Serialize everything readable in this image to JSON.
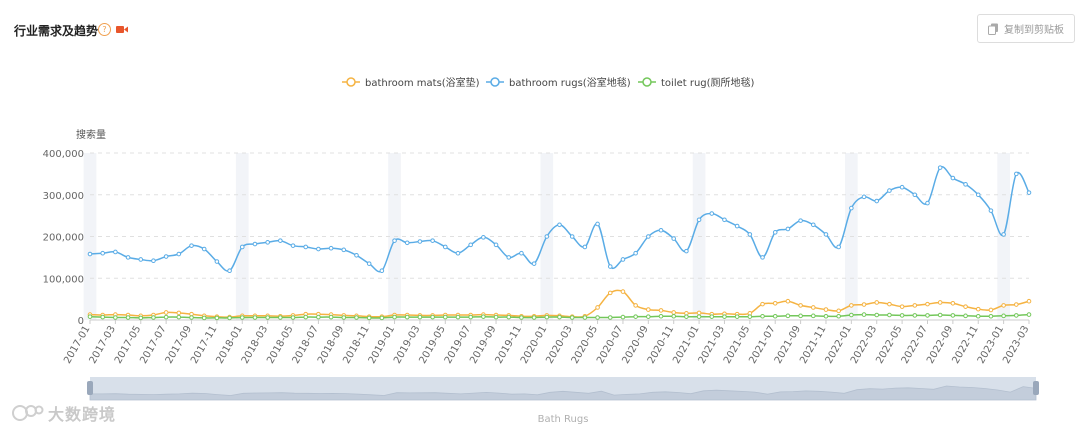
{
  "header": {
    "title": "行业需求及趋势",
    "help_glyph": "?",
    "copy_label": "复制到剪贴板"
  },
  "watermark": {
    "text": "大数跨境"
  },
  "colors": {
    "bathroom_mats": "#f5b342",
    "bathroom_rugs": "#5aace6",
    "toilet_rug": "#73c75a",
    "band": "#f2f4f8",
    "grid": "#e0e0e0",
    "axis_text": "#666666",
    "video_icon": "#e8552b"
  },
  "chart_data": {
    "type": "line",
    "ylabel": "搜索量",
    "ylim": [
      0,
      400000
    ],
    "yticks": [
      "0",
      "100,000",
      "200,000",
      "300,000",
      "400,000"
    ],
    "zoom_label": "Bath Rugs",
    "legend_position": "top-center",
    "x": [
      "2017-01",
      "2017-02",
      "2017-03",
      "2017-04",
      "2017-05",
      "2017-06",
      "2017-07",
      "2017-08",
      "2017-09",
      "2017-10",
      "2017-11",
      "2017-12",
      "2018-01",
      "2018-02",
      "2018-03",
      "2018-04",
      "2018-05",
      "2018-06",
      "2018-07",
      "2018-08",
      "2018-09",
      "2018-10",
      "2018-11",
      "2018-12",
      "2019-01",
      "2019-02",
      "2019-03",
      "2019-04",
      "2019-05",
      "2019-06",
      "2019-07",
      "2019-08",
      "2019-09",
      "2019-10",
      "2019-11",
      "2019-12",
      "2020-01",
      "2020-02",
      "2020-03",
      "2020-04",
      "2020-05",
      "2020-06",
      "2020-07",
      "2020-08",
      "2020-09",
      "2020-10",
      "2020-11",
      "2020-12",
      "2021-01",
      "2021-02",
      "2021-03",
      "2021-04",
      "2021-05",
      "2021-06",
      "2021-07",
      "2021-08",
      "2021-09",
      "2021-10",
      "2021-11",
      "2021-12",
      "2022-01",
      "2022-02",
      "2022-03",
      "2022-04",
      "2022-05",
      "2022-06",
      "2022-07",
      "2022-08",
      "2022-09",
      "2022-10",
      "2022-11",
      "2022-12",
      "2023-01",
      "2023-02",
      "2023-03"
    ],
    "series": [
      {
        "name": "bathroom mats(浴室垫)",
        "values": [
          13000,
          12000,
          13000,
          12000,
          10000,
          12000,
          18000,
          17000,
          14000,
          10000,
          8000,
          7000,
          10000,
          10000,
          10000,
          9000,
          11000,
          14000,
          14000,
          13000,
          11000,
          10000,
          8000,
          8000,
          12000,
          12000,
          11000,
          11000,
          12000,
          12000,
          12000,
          13000,
          12000,
          11000,
          9000,
          9000,
          11000,
          10000,
          8000,
          9000,
          30000,
          65000,
          68000,
          35000,
          25000,
          23000,
          18000,
          16000,
          17000,
          14000,
          15000,
          14000,
          16000,
          38000,
          40000,
          45000,
          35000,
          30000,
          25000,
          22000,
          35000,
          37000,
          42000,
          38000,
          32000,
          35000,
          38000,
          42000,
          40000,
          32000,
          26000,
          24000,
          35000,
          37000,
          45000
        ]
      },
      {
        "name": "bathroom rugs(浴室地毯)",
        "values": [
          158000,
          160000,
          163000,
          150000,
          145000,
          142000,
          152000,
          158000,
          178000,
          170000,
          140000,
          118000,
          175000,
          182000,
          186000,
          190000,
          178000,
          175000,
          170000,
          172000,
          168000,
          155000,
          135000,
          118000,
          190000,
          185000,
          188000,
          190000,
          175000,
          160000,
          180000,
          198000,
          180000,
          150000,
          160000,
          135000,
          200000,
          228000,
          200000,
          175000,
          230000,
          128000,
          145000,
          160000,
          200000,
          215000,
          195000,
          165000,
          240000,
          255000,
          240000,
          225000,
          205000,
          150000,
          210000,
          218000,
          238000,
          228000,
          205000,
          175000,
          268000,
          295000,
          285000,
          310000,
          318000,
          300000,
          280000,
          365000,
          340000,
          325000,
          300000,
          262000,
          205000,
          350000,
          305000
        ]
      },
      {
        "name": "toilet rug(厕所地毯)",
        "values": [
          8000,
          7000,
          6000,
          6000,
          5000,
          6000,
          7000,
          7000,
          6000,
          5000,
          5000,
          5000,
          6000,
          6000,
          6000,
          6000,
          6000,
          7000,
          7000,
          7000,
          6000,
          6000,
          5000,
          5000,
          7000,
          7000,
          7000,
          7000,
          7000,
          7000,
          7000,
          8000,
          7000,
          7000,
          6000,
          6000,
          7000,
          7000,
          6000,
          6000,
          6000,
          6000,
          7000,
          8000,
          8000,
          9000,
          9000,
          8000,
          8000,
          8000,
          8000,
          8000,
          8000,
          9000,
          9000,
          10000,
          10000,
          10000,
          9000,
          9000,
          12000,
          13000,
          12000,
          12000,
          11000,
          11000,
          11000,
          12000,
          11000,
          10000,
          9000,
          9000,
          10000,
          11000,
          13000
        ]
      }
    ]
  }
}
